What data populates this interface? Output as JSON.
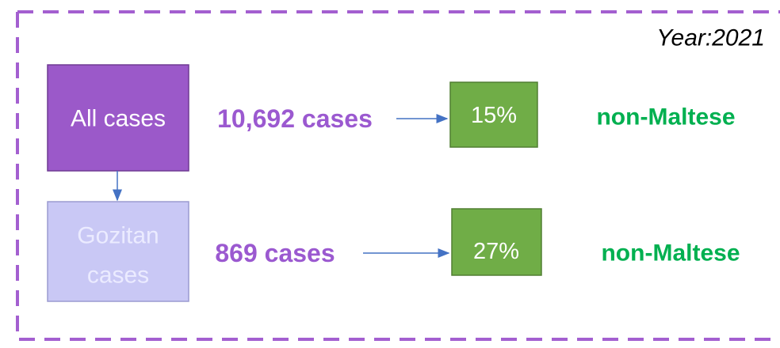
{
  "year_label": "Year:2021",
  "rows": [
    {
      "group": "All cases",
      "count": "10,692 cases",
      "share": "15%",
      "share_label": "non-Maltese"
    },
    {
      "group": [
        "Gozitan",
        "cases"
      ],
      "count": "869 cases",
      "share": "27%",
      "share_label": "non-Maltese"
    }
  ]
}
